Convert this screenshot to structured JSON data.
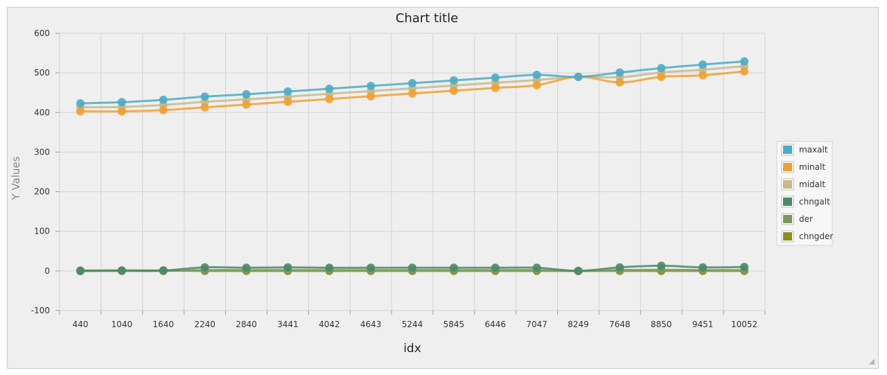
{
  "chart_data": {
    "type": "line",
    "title": "Chart title",
    "xlabel": "idx",
    "ylabel": "Y Values",
    "categories": [
      "440",
      "1040",
      "1640",
      "2240",
      "2840",
      "3441",
      "4042",
      "4643",
      "5244",
      "5845",
      "6446",
      "7047",
      "8249",
      "7648",
      "8850",
      "9451",
      "10052"
    ],
    "ylim": [
      -100,
      600
    ],
    "yticks": [
      -100,
      0,
      100,
      200,
      300,
      400,
      500,
      600
    ],
    "grid": true,
    "legend_position": "right",
    "series": [
      {
        "name": "maxalt",
        "color": "#4bacc6",
        "values": [
          423,
          426,
          432,
          440,
          446,
          453,
          460,
          467,
          474,
          481,
          488,
          495,
          490,
          501,
          512,
          521,
          529
        ]
      },
      {
        "name": "minalt",
        "color": "#f0a030",
        "values": [
          403,
          403,
          406,
          413,
          420,
          427,
          434,
          441,
          448,
          455,
          462,
          469,
          490,
          476,
          490,
          494,
          504
        ]
      },
      {
        "name": "midalt",
        "color": "#c8b88a",
        "values": [
          413,
          414,
          419,
          427,
          433,
          440,
          447,
          454,
          461,
          468,
          475,
          482,
          490,
          489,
          501,
          508,
          517
        ]
      },
      {
        "name": "chngalt",
        "color": "#4a8a6a",
        "values": [
          0,
          1,
          1,
          9,
          8,
          9,
          8,
          8,
          8,
          8,
          8,
          8,
          0,
          9,
          13,
          9,
          10
        ]
      },
      {
        "name": "der",
        "color": "#7a9a5a",
        "values": [
          0,
          0,
          0,
          2,
          2,
          2,
          2,
          2,
          2,
          2,
          2,
          2,
          0,
          2,
          3,
          2,
          2
        ]
      },
      {
        "name": "chngder",
        "color": "#8e8e1e",
        "values": [
          1,
          1,
          1,
          0,
          0,
          0,
          0,
          0,
          0,
          0,
          0,
          0,
          0,
          0,
          0,
          0,
          0
        ]
      }
    ]
  }
}
